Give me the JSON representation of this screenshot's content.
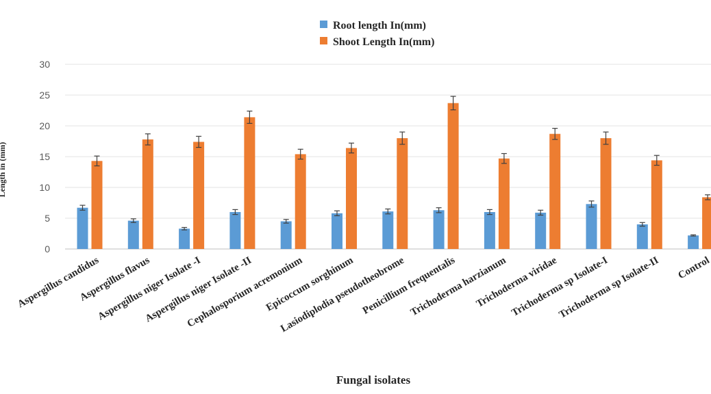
{
  "chart_data": {
    "type": "bar",
    "title": "",
    "xlabel": "Fungal isolates",
    "ylabel": "Length in (mm)",
    "ylim": [
      0,
      30
    ],
    "yticks": [
      0,
      5,
      10,
      15,
      20,
      25,
      30
    ],
    "grid": true,
    "legend_position": "top-center",
    "categories": [
      "Aspergillus candidus",
      "Aspergillus flavus",
      "Aspergillus niger Isolate -I",
      "Aspergillus niger Isolate -II",
      "Cephalosporium acremonium",
      "Epicoccum sorghinum",
      "Lasiodiplodia pseudotheobrome",
      "Penicillium frequentalis",
      "Trichoderma harzianum",
      "Trichoderma viridae",
      "Trichoderma sp Isolate-I",
      "Trichoderma sp Isolate-II",
      "Control"
    ],
    "series": [
      {
        "name": "Root length In(mm)",
        "color": "#5b9bd5",
        "values": [
          6.7,
          4.6,
          3.3,
          6.0,
          4.5,
          5.8,
          6.1,
          6.3,
          6.0,
          5.9,
          7.3,
          4.0,
          2.2
        ],
        "errors": [
          0.4,
          0.3,
          0.2,
          0.4,
          0.3,
          0.4,
          0.4,
          0.4,
          0.4,
          0.4,
          0.5,
          0.3,
          0.1
        ]
      },
      {
        "name": "Shoot Length In(mm)",
        "color": "#ed7d31",
        "values": [
          14.3,
          17.8,
          17.4,
          21.4,
          15.4,
          16.4,
          18.0,
          23.7,
          14.7,
          18.7,
          18.0,
          14.4,
          8.4
        ],
        "errors": [
          0.8,
          0.9,
          0.9,
          1.0,
          0.8,
          0.8,
          1.0,
          1.1,
          0.8,
          0.9,
          1.0,
          0.8,
          0.4
        ]
      }
    ]
  }
}
